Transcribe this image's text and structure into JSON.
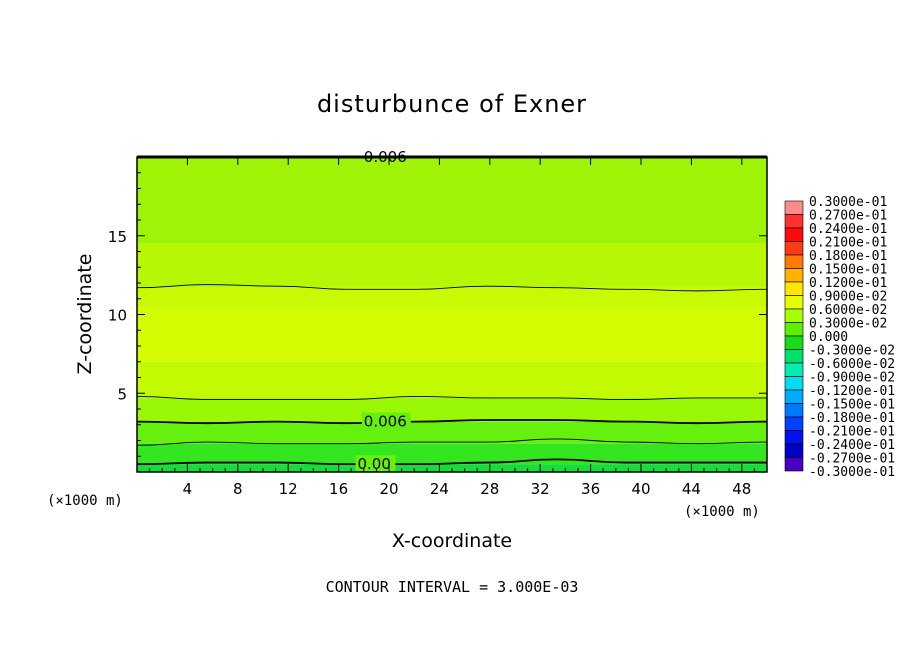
{
  "chart_data": {
    "type": "heatmap",
    "title": "disturbunce of Exner",
    "xlabel": "X-coordinate",
    "ylabel": "Z-coordinate",
    "x_unit": "(×1000 m)",
    "y_unit": "(×1000 m)",
    "xlim": [
      0,
      50
    ],
    "ylim": [
      0,
      20
    ],
    "x_ticks": [
      4,
      8,
      12,
      16,
      20,
      24,
      28,
      32,
      36,
      40,
      44,
      48
    ],
    "y_ticks": [
      5,
      10,
      15
    ],
    "x_tick_labels": [
      "4",
      "8",
      "12",
      "16",
      "20",
      "24",
      "28",
      "32",
      "36",
      "40",
      "44",
      "48"
    ],
    "y_tick_labels": [
      "5",
      "10",
      "15"
    ],
    "note": "CONTOUR INTERVAL = 3.000E-03",
    "contour_labels": [
      {
        "text": "0.006",
        "x": 18,
        "z": 20
      },
      {
        "text": "0.006",
        "x": 18,
        "z": 3.2
      },
      {
        "text": "0.00",
        "x": 17.5,
        "z": 0.5
      }
    ],
    "contours": [
      {
        "level": 0.009,
        "z": [
          11.7,
          11.9,
          11.8,
          11.6,
          11.6,
          11.8,
          11.7,
          11.6,
          11.5,
          11.6
        ],
        "bold": false
      },
      {
        "level": 0.009,
        "z": [
          4.8,
          4.6,
          4.6,
          4.6,
          4.8,
          4.7,
          4.7,
          4.6,
          4.7,
          4.7
        ],
        "bold": false
      },
      {
        "level": 0.006,
        "z": [
          3.2,
          3.1,
          3.2,
          3.1,
          3.2,
          3.3,
          3.3,
          3.2,
          3.1,
          3.2
        ],
        "bold": true
      },
      {
        "level": 0.003,
        "z": [
          1.7,
          1.9,
          1.8,
          1.8,
          1.9,
          1.9,
          2.1,
          1.9,
          1.8,
          1.9
        ],
        "bold": false
      },
      {
        "level": 0.0,
        "z": [
          0.5,
          0.6,
          0.6,
          0.5,
          0.5,
          0.6,
          0.8,
          0.6,
          0.6,
          0.6
        ],
        "bold": true
      }
    ],
    "fill_bands": [
      {
        "z0": 0,
        "z1": 0.5,
        "color": "#18dc3a"
      },
      {
        "z0": 0.5,
        "z1": 1.8,
        "color": "#33e61f"
      },
      {
        "z0": 1.8,
        "z1": 3.2,
        "color": "#66f00d"
      },
      {
        "z0": 3.2,
        "z1": 4.7,
        "color": "#9af705"
      },
      {
        "z0": 4.7,
        "z1": 7.0,
        "color": "#c2fa04"
      },
      {
        "z0": 7.0,
        "z1": 10.5,
        "color": "#d3fc03"
      },
      {
        "z0": 10.5,
        "z1": 11.7,
        "color": "#c8fa03"
      },
      {
        "z0": 11.7,
        "z1": 14.5,
        "color": "#b5f704"
      },
      {
        "z0": 14.5,
        "z1": 20,
        "color": "#9ef306"
      }
    ],
    "colorbar": {
      "labels": [
        "0.3000e-01",
        "0.2700e-01",
        "0.2400e-01",
        "0.2100e-01",
        "0.1800e-01",
        "0.1500e-01",
        "0.1200e-01",
        "0.9000e-02",
        "0.6000e-02",
        "0.3000e-02",
        "0.000",
        "-0.3000e-02",
        "-0.6000e-02",
        "-0.9000e-02",
        "-0.1200e-01",
        "-0.1500e-01",
        "-0.1800e-01",
        "-0.2100e-01",
        "-0.2400e-01",
        "-0.2700e-01",
        "-0.3000e-01"
      ],
      "colors": [
        "#ff8a8a",
        "#ff3030",
        "#ff0a0a",
        "#ff3a16",
        "#ff7b00",
        "#ffb300",
        "#ffe600",
        "#e6ff00",
        "#a6ff00",
        "#5ef000",
        "#18dc18",
        "#00e06c",
        "#00eeb0",
        "#00ddee",
        "#00aaff",
        "#0078ff",
        "#0040ff",
        "#0010ee",
        "#0000c8",
        "#4a00c0"
      ]
    }
  }
}
